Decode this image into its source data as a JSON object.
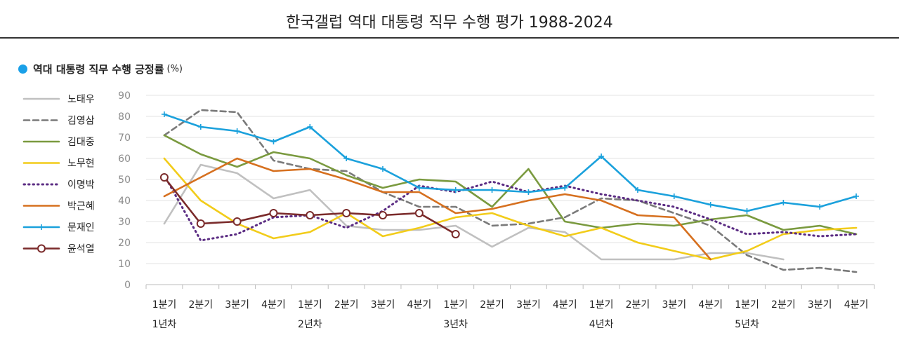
{
  "header": {
    "title": "한국갤럽 역대 대통령 직무 수행 평가 1988-2024",
    "subtitle": "역대 대통령 직무 수행 긍정률",
    "unit": "(%)",
    "accent_color": "#1aa0e8"
  },
  "chart_data": {
    "type": "line",
    "title": "한국갤럽 역대 대통령 직무 수행 평가 1988-2024",
    "subtitle": "역대 대통령 직무 수행 긍정률 (%)",
    "xlabel": "",
    "ylabel": "",
    "ylim": [
      0,
      90
    ],
    "yticks": [
      0,
      10,
      20,
      30,
      40,
      50,
      60,
      70,
      80,
      90
    ],
    "grid": true,
    "legend": "left",
    "categories": [
      "1분기",
      "2분기",
      "3분기",
      "4분기",
      "1분기",
      "2분기",
      "3분기",
      "4분기",
      "1분기",
      "2분기",
      "3분기",
      "4분기",
      "1분기",
      "2분기",
      "3분기",
      "4분기",
      "1분기",
      "2분기",
      "3분기",
      "4분기"
    ],
    "year_labels": [
      {
        "label": "1년차",
        "index": 0
      },
      {
        "label": "2년차",
        "index": 4
      },
      {
        "label": "3년차",
        "index": 8
      },
      {
        "label": "4년차",
        "index": 12
      },
      {
        "label": "5년차",
        "index": 16
      }
    ],
    "series": [
      {
        "name": "노태우",
        "color": "#c0c0c0",
        "dash": "solid",
        "marker": "none",
        "values": [
          29,
          57,
          53,
          41,
          45,
          28,
          26,
          26,
          28,
          18,
          27,
          25,
          12,
          12,
          12,
          15,
          15,
          12,
          null,
          null
        ]
      },
      {
        "name": "김영삼",
        "color": "#7a7a7a",
        "dash": "dashed",
        "marker": "none",
        "values": [
          71,
          83,
          82,
          59,
          55,
          54,
          44,
          37,
          37,
          28,
          29,
          32,
          41,
          40,
          34,
          28,
          14,
          7,
          8,
          6
        ]
      },
      {
        "name": "김대중",
        "color": "#7a9a3f",
        "dash": "solid",
        "marker": "none",
        "values": [
          71,
          62,
          56,
          63,
          60,
          52,
          46,
          50,
          49,
          37,
          55,
          30,
          27,
          29,
          28,
          31,
          33,
          26,
          28,
          24
        ]
      },
      {
        "name": "노무현",
        "color": "#f2cc1a",
        "dash": "solid",
        "marker": "none",
        "values": [
          60,
          40,
          29,
          22,
          25,
          34,
          23,
          27,
          32,
          34,
          28,
          23,
          27,
          20,
          16,
          12,
          16,
          24,
          26,
          27
        ]
      },
      {
        "name": "이명박",
        "color": "#5b2c83",
        "dash": "dotted",
        "marker": "none",
        "values": [
          52,
          21,
          24,
          32,
          33,
          27,
          35,
          47,
          44,
          49,
          44,
          47,
          43,
          40,
          37,
          31,
          24,
          25,
          23,
          24
        ]
      },
      {
        "name": "박근혜",
        "color": "#d6701f",
        "dash": "solid",
        "marker": "none",
        "values": [
          42,
          51,
          60,
          54,
          55,
          50,
          44,
          44,
          34,
          36,
          40,
          43,
          40,
          33,
          32,
          12,
          null,
          null,
          null,
          null
        ]
      },
      {
        "name": "문재인",
        "color": "#1ba1dc",
        "dash": "solid",
        "marker": "plus",
        "values": [
          81,
          75,
          73,
          68,
          75,
          60,
          55,
          46,
          45,
          45,
          44,
          46,
          61,
          45,
          42,
          38,
          35,
          39,
          37,
          42
        ]
      },
      {
        "name": "윤석열",
        "color": "#7a2a2a",
        "dash": "solid",
        "marker": "circle",
        "values": [
          51,
          29,
          30,
          34,
          33,
          34,
          33,
          34,
          24,
          null,
          null,
          null,
          null,
          null,
          null,
          null,
          null,
          null,
          null,
          null
        ]
      }
    ]
  }
}
